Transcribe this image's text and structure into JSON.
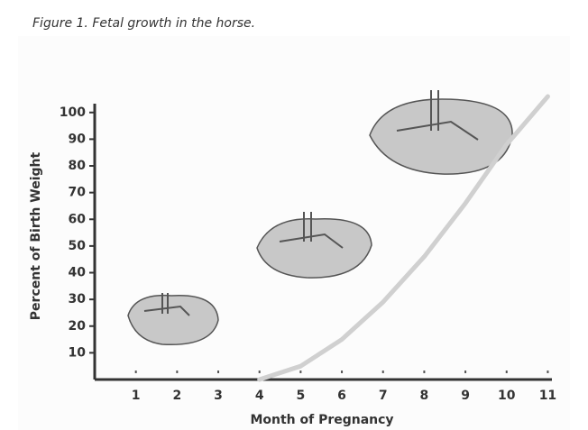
{
  "chart_data": {
    "type": "line",
    "title": "Figure 1. Fetal growth in the horse.",
    "x_label": "Month of Pregnancy",
    "y_label": "Percent of Birth Weight",
    "x": [
      4,
      5,
      6,
      7,
      8,
      9,
      10,
      11
    ],
    "series": [
      {
        "color": "#d0d0d0",
        "values": [
          0,
          5,
          15,
          29,
          46,
          66,
          88,
          106
        ]
      }
    ],
    "xlim": [
      0,
      11.1
    ],
    "ylim": [
      0,
      106
    ],
    "xticks": [
      1,
      2,
      3,
      4,
      5,
      6,
      7,
      8,
      9,
      10,
      11
    ],
    "yticks": [
      10,
      20,
      30,
      40,
      50,
      60,
      70,
      80,
      90,
      100
    ],
    "grid": false
  }
}
